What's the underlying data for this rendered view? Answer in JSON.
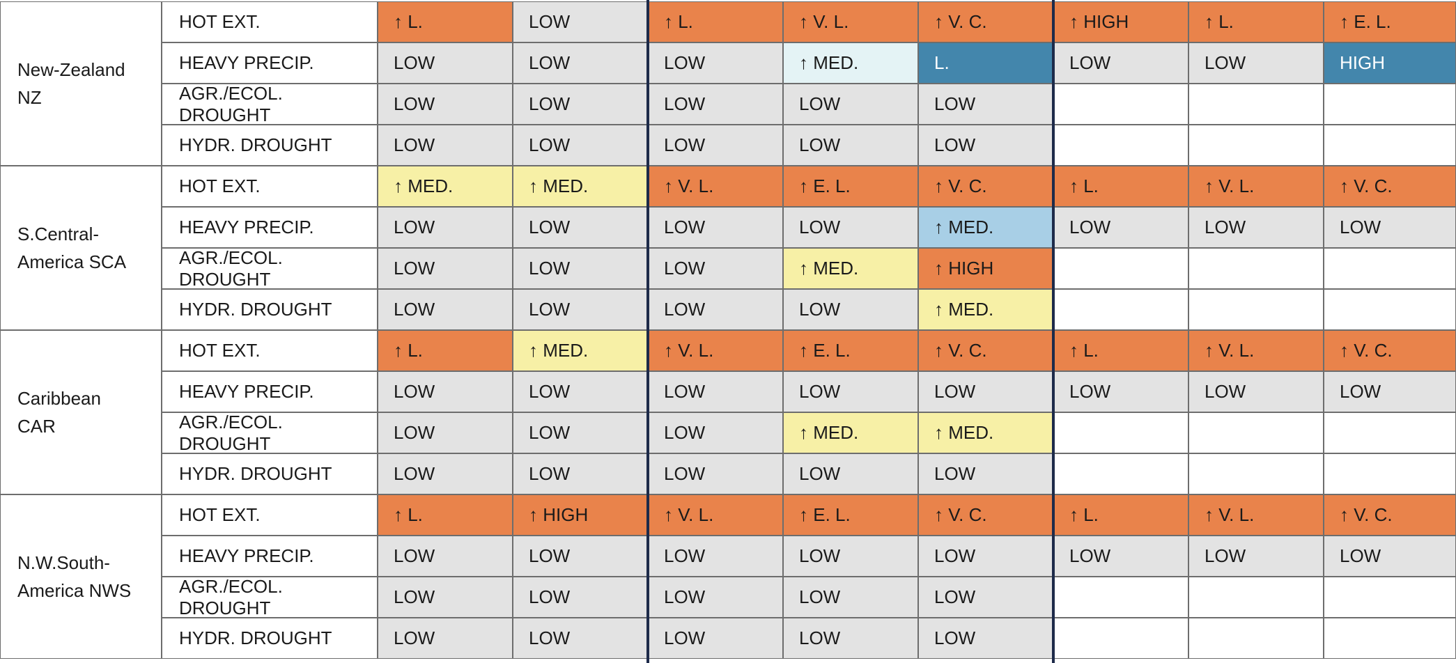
{
  "colors": {
    "LOW": "#e3e3e3",
    "MED-yellow": "#f7f0a6",
    "MED-lightblue": "#e4f3f5",
    "MED-blue": "#a8cfe6",
    "ORANGE": "#e9834b",
    "BLUE": "#4386ac",
    "EMPTY": "#ffffff"
  },
  "chart_data": {
    "type": "table",
    "regions": [
      {
        "name": "New-Zealand NZ",
        "rows": [
          {
            "hazard": "HOT EXT.",
            "cells": [
              {
                "t": "↑ L.",
                "c": "ORANGE"
              },
              {
                "t": "LOW",
                "c": "LOW"
              },
              {
                "t": "↑ L.",
                "c": "ORANGE"
              },
              {
                "t": "↑ V. L.",
                "c": "ORANGE"
              },
              {
                "t": "↑ V. C.",
                "c": "ORANGE"
              },
              {
                "t": "↑ HIGH",
                "c": "ORANGE"
              },
              {
                "t": "↑ L.",
                "c": "ORANGE"
              },
              {
                "t": "↑ E. L.",
                "c": "ORANGE"
              }
            ]
          },
          {
            "hazard": "HEAVY PRECIP.",
            "cells": [
              {
                "t": "LOW",
                "c": "LOW"
              },
              {
                "t": "LOW",
                "c": "LOW"
              },
              {
                "t": "LOW",
                "c": "LOW"
              },
              {
                "t": "↑ MED.",
                "c": "MED-lightblue"
              },
              {
                "t": "L.",
                "c": "BLUE"
              },
              {
                "t": "LOW",
                "c": "LOW"
              },
              {
                "t": "LOW",
                "c": "LOW"
              },
              {
                "t": "HIGH",
                "c": "BLUE"
              }
            ]
          },
          {
            "hazard": "AGR./ECOL. DROUGHT",
            "cells": [
              {
                "t": "LOW",
                "c": "LOW"
              },
              {
                "t": "LOW",
                "c": "LOW"
              },
              {
                "t": "LOW",
                "c": "LOW"
              },
              {
                "t": "LOW",
                "c": "LOW"
              },
              {
                "t": "LOW",
                "c": "LOW"
              },
              {
                "t": "",
                "c": "EMPTY"
              },
              {
                "t": "",
                "c": "EMPTY"
              },
              {
                "t": "",
                "c": "EMPTY"
              }
            ]
          },
          {
            "hazard": "HYDR. DROUGHT",
            "cells": [
              {
                "t": "LOW",
                "c": "LOW"
              },
              {
                "t": "LOW",
                "c": "LOW"
              },
              {
                "t": "LOW",
                "c": "LOW"
              },
              {
                "t": "LOW",
                "c": "LOW"
              },
              {
                "t": "LOW",
                "c": "LOW"
              },
              {
                "t": "",
                "c": "EMPTY"
              },
              {
                "t": "",
                "c": "EMPTY"
              },
              {
                "t": "",
                "c": "EMPTY"
              }
            ]
          }
        ]
      },
      {
        "name": "S.Central-America SCA",
        "rows": [
          {
            "hazard": "HOT EXT.",
            "cells": [
              {
                "t": "↑ MED.",
                "c": "MED-yellow"
              },
              {
                "t": "↑ MED.",
                "c": "MED-yellow"
              },
              {
                "t": "↑ V. L.",
                "c": "ORANGE"
              },
              {
                "t": "↑ E. L.",
                "c": "ORANGE"
              },
              {
                "t": "↑ V. C.",
                "c": "ORANGE"
              },
              {
                "t": "↑ L.",
                "c": "ORANGE"
              },
              {
                "t": "↑ V. L.",
                "c": "ORANGE"
              },
              {
                "t": "↑ V. C.",
                "c": "ORANGE"
              }
            ]
          },
          {
            "hazard": "HEAVY PRECIP.",
            "cells": [
              {
                "t": "LOW",
                "c": "LOW"
              },
              {
                "t": "LOW",
                "c": "LOW"
              },
              {
                "t": "LOW",
                "c": "LOW"
              },
              {
                "t": "LOW",
                "c": "LOW"
              },
              {
                "t": "↑ MED.",
                "c": "MED-blue"
              },
              {
                "t": "LOW",
                "c": "LOW"
              },
              {
                "t": "LOW",
                "c": "LOW"
              },
              {
                "t": "LOW",
                "c": "LOW"
              }
            ]
          },
          {
            "hazard": "AGR./ECOL. DROUGHT",
            "cells": [
              {
                "t": "LOW",
                "c": "LOW"
              },
              {
                "t": "LOW",
                "c": "LOW"
              },
              {
                "t": "LOW",
                "c": "LOW"
              },
              {
                "t": "↑ MED.",
                "c": "MED-yellow"
              },
              {
                "t": "↑ HIGH",
                "c": "ORANGE"
              },
              {
                "t": "",
                "c": "EMPTY"
              },
              {
                "t": "",
                "c": "EMPTY"
              },
              {
                "t": "",
                "c": "EMPTY"
              }
            ]
          },
          {
            "hazard": "HYDR. DROUGHT",
            "cells": [
              {
                "t": "LOW",
                "c": "LOW"
              },
              {
                "t": "LOW",
                "c": "LOW"
              },
              {
                "t": "LOW",
                "c": "LOW"
              },
              {
                "t": "LOW",
                "c": "LOW"
              },
              {
                "t": "↑ MED.",
                "c": "MED-yellow"
              },
              {
                "t": "",
                "c": "EMPTY"
              },
              {
                "t": "",
                "c": "EMPTY"
              },
              {
                "t": "",
                "c": "EMPTY"
              }
            ]
          }
        ]
      },
      {
        "name": "Caribbean CAR",
        "rows": [
          {
            "hazard": "HOT EXT.",
            "cells": [
              {
                "t": "↑ L.",
                "c": "ORANGE"
              },
              {
                "t": "↑ MED.",
                "c": "MED-yellow"
              },
              {
                "t": "↑ V. L.",
                "c": "ORANGE"
              },
              {
                "t": "↑ E. L.",
                "c": "ORANGE"
              },
              {
                "t": "↑ V. C.",
                "c": "ORANGE"
              },
              {
                "t": "↑ L.",
                "c": "ORANGE"
              },
              {
                "t": "↑ V. L.",
                "c": "ORANGE"
              },
              {
                "t": "↑ V. C.",
                "c": "ORANGE"
              }
            ]
          },
          {
            "hazard": "HEAVY PRECIP.",
            "cells": [
              {
                "t": "LOW",
                "c": "LOW"
              },
              {
                "t": "LOW",
                "c": "LOW"
              },
              {
                "t": "LOW",
                "c": "LOW"
              },
              {
                "t": "LOW",
                "c": "LOW"
              },
              {
                "t": "LOW",
                "c": "LOW"
              },
              {
                "t": "LOW",
                "c": "LOW"
              },
              {
                "t": "LOW",
                "c": "LOW"
              },
              {
                "t": "LOW",
                "c": "LOW"
              }
            ]
          },
          {
            "hazard": "AGR./ECOL. DROUGHT",
            "cells": [
              {
                "t": "LOW",
                "c": "LOW"
              },
              {
                "t": "LOW",
                "c": "LOW"
              },
              {
                "t": "LOW",
                "c": "LOW"
              },
              {
                "t": "↑ MED.",
                "c": "MED-yellow"
              },
              {
                "t": "↑ MED.",
                "c": "MED-yellow"
              },
              {
                "t": "",
                "c": "EMPTY"
              },
              {
                "t": "",
                "c": "EMPTY"
              },
              {
                "t": "",
                "c": "EMPTY"
              }
            ]
          },
          {
            "hazard": "HYDR. DROUGHT",
            "cells": [
              {
                "t": "LOW",
                "c": "LOW"
              },
              {
                "t": "LOW",
                "c": "LOW"
              },
              {
                "t": "LOW",
                "c": "LOW"
              },
              {
                "t": "LOW",
                "c": "LOW"
              },
              {
                "t": "LOW",
                "c": "LOW"
              },
              {
                "t": "",
                "c": "EMPTY"
              },
              {
                "t": "",
                "c": "EMPTY"
              },
              {
                "t": "",
                "c": "EMPTY"
              }
            ]
          }
        ]
      },
      {
        "name": "N.W.South-America NWS",
        "rows": [
          {
            "hazard": "HOT EXT.",
            "cells": [
              {
                "t": "↑ L.",
                "c": "ORANGE"
              },
              {
                "t": "↑ HIGH",
                "c": "ORANGE"
              },
              {
                "t": "↑ V. L.",
                "c": "ORANGE"
              },
              {
                "t": "↑ E. L.",
                "c": "ORANGE"
              },
              {
                "t": "↑ V. C.",
                "c": "ORANGE"
              },
              {
                "t": "↑ L.",
                "c": "ORANGE"
              },
              {
                "t": "↑ V. L.",
                "c": "ORANGE"
              },
              {
                "t": "↑ V. C.",
                "c": "ORANGE"
              }
            ]
          },
          {
            "hazard": "HEAVY PRECIP.",
            "cells": [
              {
                "t": "LOW",
                "c": "LOW"
              },
              {
                "t": "LOW",
                "c": "LOW"
              },
              {
                "t": "LOW",
                "c": "LOW"
              },
              {
                "t": "LOW",
                "c": "LOW"
              },
              {
                "t": "LOW",
                "c": "LOW"
              },
              {
                "t": "LOW",
                "c": "LOW"
              },
              {
                "t": "LOW",
                "c": "LOW"
              },
              {
                "t": "LOW",
                "c": "LOW"
              }
            ]
          },
          {
            "hazard": "AGR./ECOL. DROUGHT",
            "cells": [
              {
                "t": "LOW",
                "c": "LOW"
              },
              {
                "t": "LOW",
                "c": "LOW"
              },
              {
                "t": "LOW",
                "c": "LOW"
              },
              {
                "t": "LOW",
                "c": "LOW"
              },
              {
                "t": "LOW",
                "c": "LOW"
              },
              {
                "t": "",
                "c": "EMPTY"
              },
              {
                "t": "",
                "c": "EMPTY"
              },
              {
                "t": "",
                "c": "EMPTY"
              }
            ]
          },
          {
            "hazard": "HYDR. DROUGHT",
            "cells": [
              {
                "t": "LOW",
                "c": "LOW"
              },
              {
                "t": "LOW",
                "c": "LOW"
              },
              {
                "t": "LOW",
                "c": "LOW"
              },
              {
                "t": "LOW",
                "c": "LOW"
              },
              {
                "t": "LOW",
                "c": "LOW"
              },
              {
                "t": "",
                "c": "EMPTY"
              },
              {
                "t": "",
                "c": "EMPTY"
              },
              {
                "t": "",
                "c": "EMPTY"
              }
            ]
          }
        ]
      }
    ]
  }
}
